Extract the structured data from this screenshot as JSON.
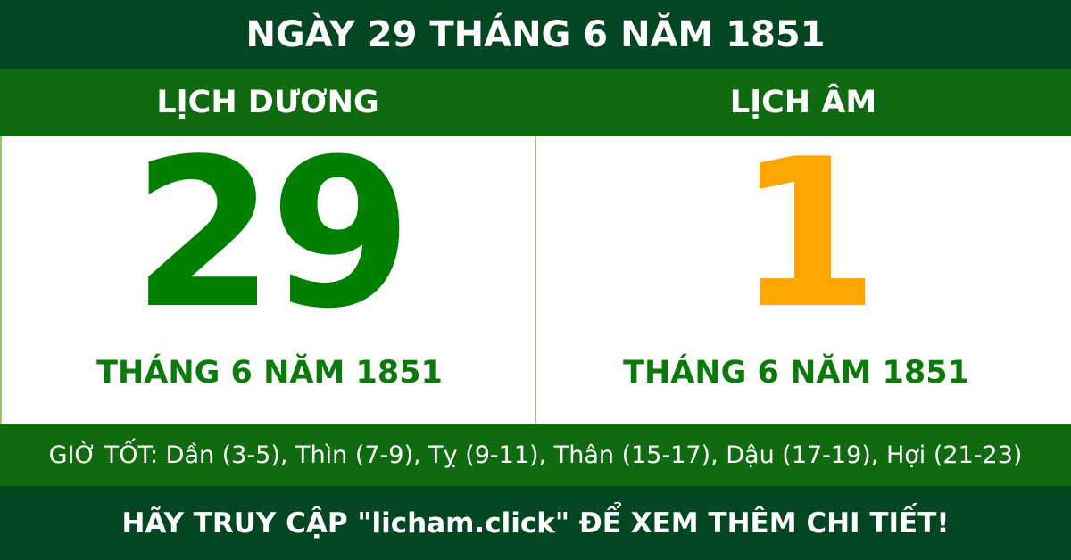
{
  "header": {
    "title": "NGÀY 29 THÁNG 6 NĂM 1851"
  },
  "solar": {
    "label": "LỊCH DƯƠNG",
    "day": "29",
    "month_year": "THÁNG 6 NĂM 1851"
  },
  "lunar": {
    "label": "LỊCH ÂM",
    "day": "1",
    "month_year": "THÁNG 6 NĂM 1851"
  },
  "good_hours": "GIỜ TỐT: Dần (3-5), Thìn (7-9), Tỵ (9-11), Thân (15-17), Dậu (17-19), Hợi (21-23)",
  "footer": "HÃY TRUY CẬP \"licham.click\" ĐỂ XEM THÊM CHI TIẾT!",
  "colors": {
    "dark_green": "#034622",
    "green": "#106a10",
    "solar_day": "#008000",
    "lunar_day": "#FFA500"
  }
}
